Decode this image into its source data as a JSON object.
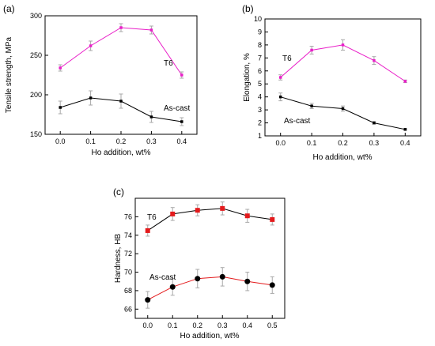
{
  "chart_data": [
    {
      "panel": "(a)",
      "type": "line",
      "xlabel": "Ho addition, wt%",
      "ylabel": "Tensile strength, MPa",
      "x": [
        0.0,
        0.1,
        0.2,
        0.3,
        0.4
      ],
      "xticks": [
        "0.0",
        "0.1",
        "0.2",
        "0.3",
        "0.4"
      ],
      "xlim": [
        -0.05,
        0.45
      ],
      "ylim": [
        150,
        300
      ],
      "yticks": [
        150,
        200,
        250,
        300
      ],
      "series": [
        {
          "name": "T6",
          "color": "#e91ec8",
          "marker": "square",
          "values": [
            234,
            262,
            285,
            282,
            225
          ],
          "errors": [
            4,
            6,
            5,
            5,
            4
          ]
        },
        {
          "name": "As-cast",
          "color": "#000000",
          "marker": "square",
          "values": [
            184,
            196,
            192,
            172,
            166
          ],
          "errors": [
            8,
            9,
            9,
            7,
            5
          ]
        }
      ]
    },
    {
      "panel": "(b)",
      "type": "line",
      "xlabel": "Ho addition, wt%",
      "ylabel": "Elongation, %",
      "x": [
        0.0,
        0.1,
        0.2,
        0.3,
        0.4
      ],
      "xticks": [
        "0.0",
        "0.1",
        "0.2",
        "0.3",
        "0.4"
      ],
      "xlim": [
        -0.05,
        0.45
      ],
      "ylim": [
        1,
        10
      ],
      "yticks": [
        1,
        2,
        3,
        4,
        5,
        6,
        7,
        8,
        9,
        10
      ],
      "series": [
        {
          "name": "T6",
          "color": "#e91ec8",
          "marker": "square",
          "values": [
            5.5,
            7.6,
            8.0,
            6.8,
            5.2
          ],
          "errors": [
            0.2,
            0.3,
            0.4,
            0.3,
            0.1
          ]
        },
        {
          "name": "As-cast",
          "color": "#000000",
          "marker": "square",
          "values": [
            4.0,
            3.3,
            3.1,
            2.0,
            1.5
          ],
          "errors": [
            0.3,
            0.2,
            0.2,
            0.1,
            0.05
          ]
        }
      ]
    },
    {
      "panel": "(c)",
      "type": "line",
      "xlabel": "Ho addition, wt%",
      "ylabel": "Hardness, HB",
      "x": [
        0.0,
        0.1,
        0.2,
        0.3,
        0.4,
        0.5
      ],
      "xticks": [
        "0.0",
        "0.1",
        "0.2",
        "0.3",
        "0.4",
        "0.5"
      ],
      "xlim": [
        -0.05,
        0.55
      ],
      "ylim": [
        65,
        78
      ],
      "yticks": [
        66,
        68,
        70,
        72,
        74,
        76
      ],
      "series": [
        {
          "name": "T6",
          "color": "#e41a1c",
          "line_color": "#000000",
          "marker": "square",
          "values": [
            74.5,
            76.3,
            76.7,
            76.9,
            76.1,
            75.7
          ],
          "errors": [
            0.6,
            0.7,
            0.6,
            0.7,
            0.7,
            0.6
          ]
        },
        {
          "name": "As-cast",
          "color": "#000000",
          "line_color": "#e41a1c",
          "marker": "circle",
          "values": [
            67.0,
            68.4,
            69.3,
            69.5,
            69.0,
            68.6
          ],
          "errors": [
            0.9,
            0.9,
            1.0,
            1.0,
            1.0,
            0.9
          ]
        }
      ]
    }
  ]
}
